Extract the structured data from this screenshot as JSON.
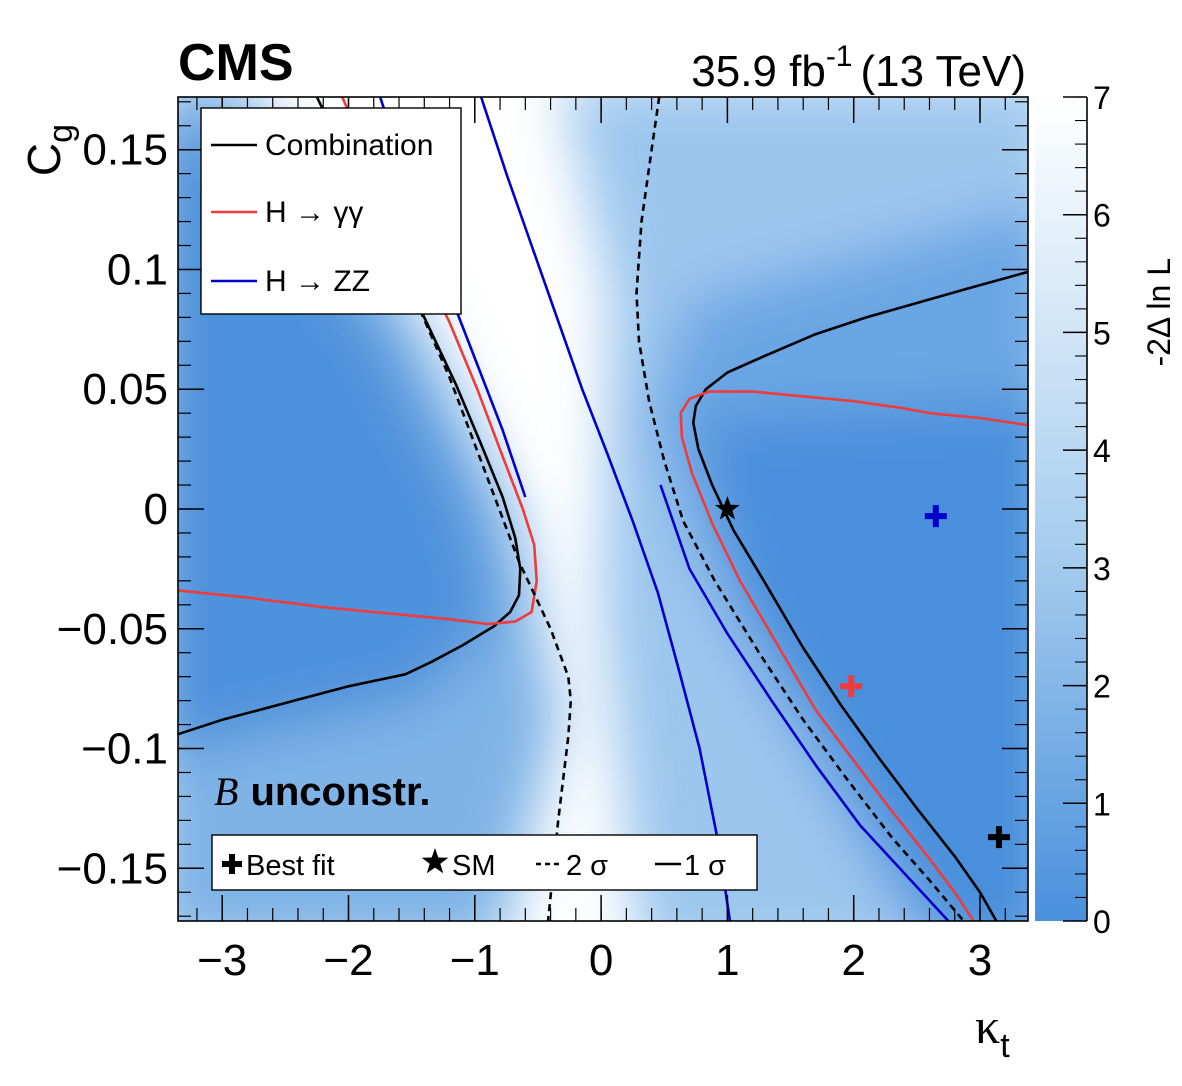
{
  "chart_data": {
    "type": "heatmap",
    "experiment": "CMS",
    "lumi_text": "35.9 fb",
    "lumi_sup": "-1",
    "energy_text": "(13 TeV)",
    "xlabel": "κ",
    "xlabel_sub": "t",
    "ylabel": "C",
    "ylabel_sub": "g",
    "zlabel": "-2Δ ln L",
    "xlim": [
      -3.35,
      3.38
    ],
    "ylim": [
      -0.172,
      0.172
    ],
    "zlim": [
      0,
      7
    ],
    "xticks": [
      -3,
      -2,
      -1,
      0,
      1,
      2,
      3
    ],
    "xtick_labels": [
      "−3",
      "−2",
      "−1",
      "0",
      "1",
      "2",
      "3"
    ],
    "yticks": [
      -0.15,
      -0.1,
      -0.05,
      0,
      0.05,
      0.1,
      0.15
    ],
    "ytick_labels": [
      "−0.15",
      "−0.1",
      "−0.05",
      "0",
      "0.05",
      "0.1",
      "0.15"
    ],
    "zticks": [
      0,
      1,
      2,
      3,
      4,
      5,
      6,
      7
    ],
    "ztick_labels": [
      "0",
      "1",
      "2",
      "3",
      "4",
      "5",
      "6",
      "7"
    ],
    "annotation_italic": "B",
    "annotation_bold": "unconstr.",
    "colors": {
      "combination": "#000000",
      "hgg": "#ee3b3b",
      "hzz": "#0000cc",
      "palette_low": "#4a90dc",
      "palette_high": "#ffffff"
    },
    "series": [
      {
        "name": "Combination",
        "role": "1sigma",
        "segments": [
          [
            [
              -3.35,
              -0.094
            ],
            [
              -3.0,
              -0.088
            ],
            [
              -2.5,
              -0.081
            ],
            [
              -2.0,
              -0.074
            ],
            [
              -1.55,
              -0.069
            ],
            [
              -1.35,
              -0.064
            ],
            [
              -1.1,
              -0.057
            ],
            [
              -0.85,
              -0.049
            ],
            [
              -0.72,
              -0.043
            ],
            [
              -0.65,
              -0.036
            ],
            [
              -0.64,
              -0.025
            ],
            [
              -0.68,
              -0.012
            ],
            [
              -0.78,
              0.005
            ],
            [
              -0.95,
              0.027
            ],
            [
              -1.15,
              0.052
            ],
            [
              -1.4,
              0.08
            ],
            [
              -1.7,
              0.112
            ],
            [
              -2.0,
              0.145
            ],
            [
              -2.25,
              0.172
            ]
          ],
          [
            [
              3.13,
              -0.172
            ],
            [
              3.0,
              -0.16
            ],
            [
              2.8,
              -0.145
            ],
            [
              2.5,
              -0.125
            ],
            [
              2.2,
              -0.104
            ],
            [
              1.9,
              -0.082
            ],
            [
              1.6,
              -0.058
            ],
            [
              1.3,
              -0.031
            ],
            [
              1.05,
              -0.009
            ],
            [
              0.88,
              0.01
            ],
            [
              0.77,
              0.025
            ],
            [
              0.73,
              0.036
            ],
            [
              0.75,
              0.043
            ],
            [
              0.83,
              0.05
            ],
            [
              1.0,
              0.057
            ],
            [
              1.3,
              0.064
            ],
            [
              1.7,
              0.073
            ],
            [
              2.1,
              0.08
            ],
            [
              2.5,
              0.086
            ],
            [
              2.9,
              0.092
            ],
            [
              3.38,
              0.099
            ]
          ]
        ]
      },
      {
        "name": "H → γγ",
        "role": "1sigma",
        "segments": [
          [
            [
              -3.35,
              -0.034
            ],
            [
              -2.8,
              -0.037
            ],
            [
              -2.2,
              -0.041
            ],
            [
              -1.6,
              -0.044
            ],
            [
              -1.2,
              -0.046
            ],
            [
              -0.9,
              -0.048
            ],
            [
              -0.68,
              -0.047
            ],
            [
              -0.55,
              -0.043
            ],
            [
              -0.51,
              -0.03
            ],
            [
              -0.53,
              -0.015
            ],
            [
              -0.62,
              0.0
            ],
            [
              -0.78,
              0.022
            ],
            [
              -0.98,
              0.05
            ],
            [
              -1.2,
              0.078
            ],
            [
              -1.5,
              0.11
            ],
            [
              -1.8,
              0.142
            ],
            [
              -2.05,
              0.172
            ]
          ],
          [
            [
              2.95,
              -0.172
            ],
            [
              2.8,
              -0.16
            ],
            [
              2.6,
              -0.146
            ],
            [
              2.3,
              -0.126
            ],
            [
              2.0,
              -0.105
            ],
            [
              1.7,
              -0.084
            ],
            [
              1.4,
              -0.057
            ],
            [
              1.1,
              -0.03
            ],
            [
              0.88,
              -0.006
            ],
            [
              0.72,
              0.015
            ],
            [
              0.64,
              0.03
            ],
            [
              0.63,
              0.04
            ],
            [
              0.7,
              0.046
            ],
            [
              0.85,
              0.049
            ],
            [
              1.2,
              0.049
            ],
            [
              1.6,
              0.047
            ],
            [
              2.0,
              0.045
            ],
            [
              2.4,
              0.042
            ],
            [
              2.6,
              0.04
            ],
            [
              3.0,
              0.038
            ],
            [
              3.38,
              0.035
            ]
          ]
        ]
      },
      {
        "name": "H → ZZ",
        "role": "1sigma",
        "segments": [
          [
            [
              -1.75,
              0.172
            ],
            [
              -1.5,
              0.132
            ],
            [
              -1.25,
              0.097
            ],
            [
              -1.0,
              0.063
            ],
            [
              -0.78,
              0.033
            ],
            [
              -0.6,
              0.005
            ]
          ],
          [
            [
              -0.95,
              0.172
            ],
            [
              -0.75,
              0.14
            ],
            [
              -0.55,
              0.11
            ],
            [
              -0.35,
              0.08
            ],
            [
              -0.15,
              0.05
            ],
            [
              0.05,
              0.023
            ],
            [
              0.25,
              -0.005
            ],
            [
              0.45,
              -0.035
            ],
            [
              0.62,
              -0.068
            ],
            [
              0.78,
              -0.1
            ],
            [
              0.93,
              -0.14
            ],
            [
              1.02,
              -0.172
            ]
          ],
          [
            [
              0.47,
              0.01
            ],
            [
              0.7,
              -0.025
            ],
            [
              1.0,
              -0.052
            ],
            [
              1.35,
              -0.08
            ],
            [
              1.7,
              -0.107
            ],
            [
              2.05,
              -0.132
            ],
            [
              2.4,
              -0.152
            ],
            [
              2.75,
              -0.172
            ]
          ]
        ]
      },
      {
        "name": "Combination",
        "role": "2sigma",
        "segments": [
          [
            [
              -1.7,
              0.115
            ],
            [
              -1.45,
              0.085
            ],
            [
              -1.2,
              0.055
            ],
            [
              -0.95,
              0.02
            ],
            [
              -0.65,
              -0.022
            ],
            [
              -0.4,
              -0.05
            ],
            [
              -0.26,
              -0.07
            ],
            [
              -0.24,
              -0.08
            ],
            [
              -0.26,
              -0.095
            ],
            [
              -0.34,
              -0.13
            ],
            [
              -0.42,
              -0.172
            ]
          ],
          [
            [
              0.46,
              0.172
            ],
            [
              0.4,
              0.15
            ],
            [
              0.32,
              0.12
            ],
            [
              0.28,
              0.09
            ],
            [
              0.3,
              0.07
            ],
            [
              0.38,
              0.045
            ],
            [
              0.5,
              0.02
            ],
            [
              0.65,
              -0.005
            ],
            [
              0.9,
              -0.03
            ],
            [
              1.25,
              -0.06
            ],
            [
              1.6,
              -0.088
            ],
            [
              1.95,
              -0.113
            ],
            [
              2.3,
              -0.137
            ],
            [
              2.6,
              -0.155
            ],
            [
              2.87,
              -0.172
            ]
          ]
        ]
      }
    ],
    "points": [
      {
        "series": "Combination",
        "marker": "plus",
        "x": 3.15,
        "y": -0.137
      },
      {
        "series": "H → γγ",
        "marker": "plus",
        "x": 1.98,
        "y": -0.074
      },
      {
        "series": "H → ZZ",
        "marker": "plus",
        "x": 2.65,
        "y": -0.003
      },
      {
        "series": "SM",
        "marker": "star",
        "x": 1.0,
        "y": 0.0
      }
    ],
    "heatmap_minima": [
      {
        "x": -2.3,
        "y": 0.03,
        "z": 0.8
      },
      {
        "x": 2.4,
        "y": -0.11,
        "z": 0.5
      }
    ],
    "legend": {
      "entries": [
        {
          "label": "Combination",
          "color": "#000000"
        },
        {
          "label": "H → γγ",
          "color": "#ee3b3b"
        },
        {
          "label": "H → ZZ",
          "color": "#0000cc"
        }
      ]
    },
    "legend2": {
      "entries": [
        {
          "label": "Best fit",
          "marker": "plus"
        },
        {
          "label": "SM",
          "marker": "star"
        },
        {
          "label": "2 σ",
          "marker": "dashed"
        },
        {
          "label": "1 σ",
          "marker": "solid"
        }
      ]
    }
  }
}
